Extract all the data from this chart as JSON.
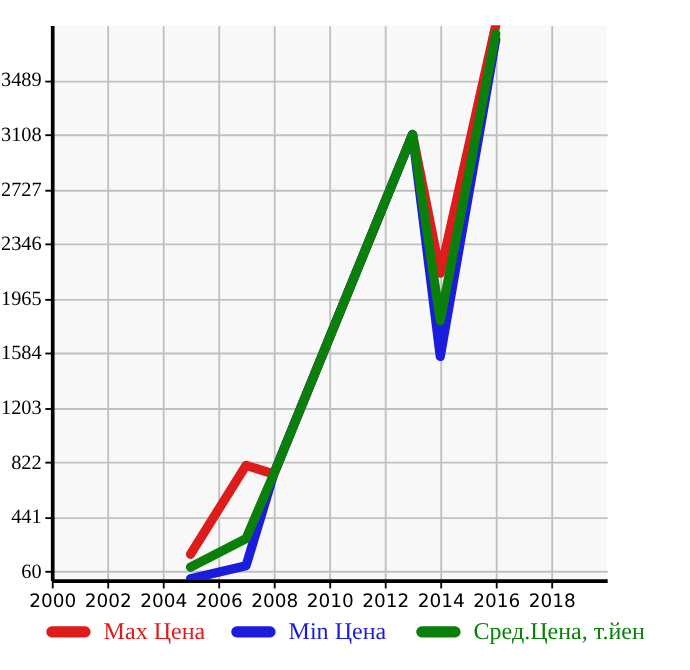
{
  "chart_data": {
    "type": "line",
    "x": [
      2005,
      2007,
      2008,
      2013,
      2014,
      2016
    ],
    "series": [
      {
        "name": "Max Цена",
        "color": "#dd1c1c",
        "values": [
          180,
          800,
          740,
          3108,
          2140,
          3870
        ]
      },
      {
        "name": "Min Цена",
        "color": "#1c1cdd",
        "values": [
          10,
          100,
          740,
          3108,
          1560,
          3770
        ]
      },
      {
        "name": "Сред.Цена, т.йен",
        "color": "#0a800a",
        "values": [
          90,
          290,
          740,
          3108,
          1810,
          3810
        ]
      }
    ],
    "xlim": [
      2000,
      2020
    ],
    "xticks": [
      2000,
      2002,
      2004,
      2006,
      2008,
      2010,
      2012,
      2014,
      2016,
      2018
    ],
    "ylim": [
      0,
      3870
    ],
    "yticks": [
      60,
      441,
      822,
      1203,
      1584,
      1965,
      2346,
      2727,
      3108,
      3489
    ],
    "grid": true,
    "legend": "bottom",
    "marker": "none",
    "line_style": "solid"
  }
}
